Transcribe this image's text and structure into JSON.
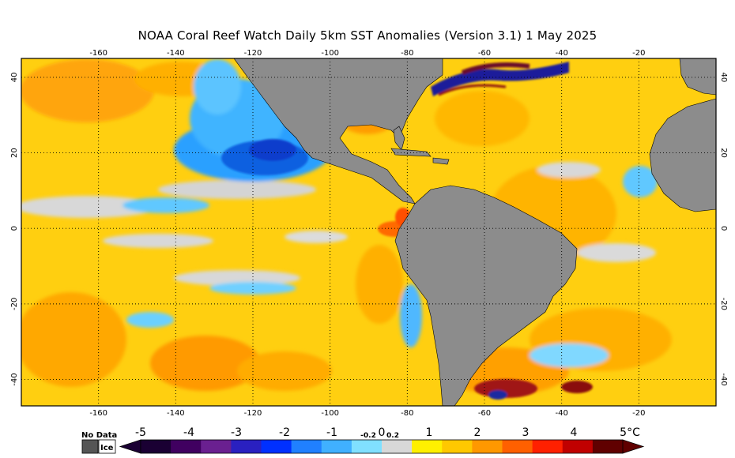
{
  "title": "NOAA Coral Reef Watch Daily 5km SST Anomalies (Version 3.1)  1 May 2025",
  "map": {
    "lon_range": [
      -180,
      0
    ],
    "lat_range": [
      -47,
      45
    ],
    "lon_ticks": [
      "-160",
      "-140",
      "-120",
      "-100",
      "-80",
      "-60",
      "-40",
      "-20"
    ],
    "lat_ticks_left": [
      "40",
      "20",
      "0",
      "-20",
      "-40"
    ],
    "lat_ticks_right": [
      "40",
      "20",
      "0",
      "-20",
      "-40"
    ],
    "grid": "dotted",
    "colors": {
      "land": "#8c8c8c",
      "neutral": "#d6d6d6",
      "warm_light": "#ffd21a",
      "warm": "#ffc400",
      "warm_orange": "#ffa500",
      "warm_dark": "#ff7a00",
      "hot": "#d42a00",
      "cool_light": "#7fd4ff",
      "cool": "#29a8ff",
      "cold": "#0a3ccc",
      "very_cold": "#1c0a66"
    }
  },
  "colorbar": {
    "legend_no_data": "No Data",
    "legend_ice": "Ice",
    "labels": [
      "-5",
      "-4",
      "-3",
      "-2",
      "-1",
      "-0.2",
      "0",
      "0.2",
      "1",
      "2",
      "3",
      "4",
      "5°C"
    ],
    "colors": [
      "#1a0033",
      "#400060",
      "#6a2090",
      "#2a20c0",
      "#0030ff",
      "#2080ff",
      "#40b0ff",
      "#80e0ff",
      "#d8d8d8",
      "#fff000",
      "#ffc800",
      "#ff9800",
      "#ff6000",
      "#ff2000",
      "#c00000",
      "#600000"
    ]
  }
}
